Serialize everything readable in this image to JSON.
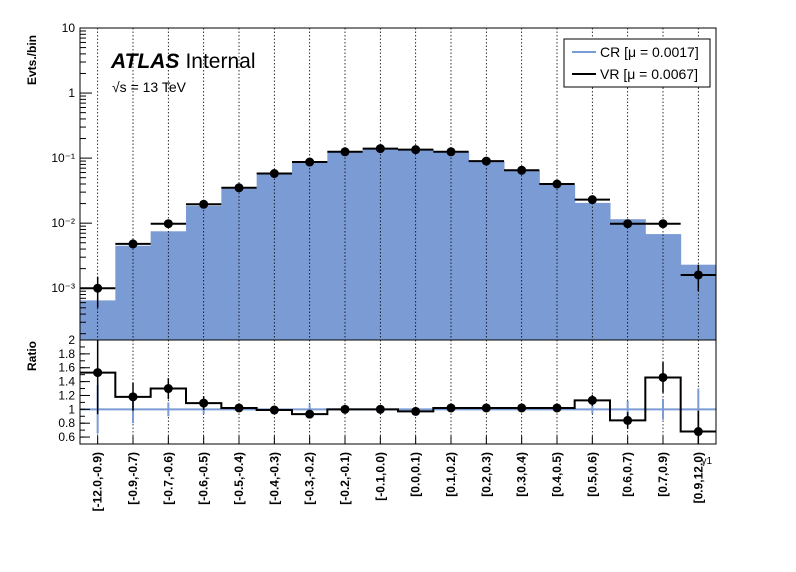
{
  "chart_data": {
    "type": "bar",
    "categories": [
      "[-12.0,-0.9)",
      "[-0.9,-0.7)",
      "[-0.7,-0.6)",
      "[-0.6,-0.5)",
      "[-0.5,-0.4)",
      "[-0.4,-0.3)",
      "[-0.3,-0.2)",
      "[-0.2,-0.1)",
      "[-0.1,0.0)",
      "[0.0,0.1)",
      "[0.1,0.2)",
      "[0.2,0.3)",
      "[0.3,0.4)",
      "[0.4,0.5)",
      "[0.5,0.6)",
      "[0.6,0.7)",
      "[0.7,0.9)",
      "[0.9,12.0)"
    ],
    "xlabel": "γ1",
    "ylabel": "Evts./bin",
    "ratio_ylabel": "Ratio",
    "yscale": "log",
    "ylim": [
      0.00016,
      10
    ],
    "ytick_labels": [
      "10⁻³",
      "10⁻²",
      "10⁻¹",
      "1",
      "10"
    ],
    "ytick_values": [
      0.001,
      0.01,
      0.1,
      1,
      10
    ],
    "ratio_ylim": [
      0.5,
      2.0
    ],
    "ratio_ytick_labels": [
      "0.6",
      "0.8",
      "1",
      "1.2",
      "1.4",
      "1.6",
      "1.8",
      "2"
    ],
    "ratio_ytick_values": [
      0.6,
      0.8,
      1.0,
      1.2,
      1.4,
      1.6,
      1.8,
      2.0
    ],
    "series": [
      {
        "name": "CR [μ = 0.0017]",
        "style": "filled histogram",
        "values": [
          0.00065,
          0.0045,
          0.0075,
          0.0185,
          0.034,
          0.058,
          0.09,
          0.125,
          0.14,
          0.137,
          0.122,
          0.091,
          0.065,
          0.039,
          0.0205,
          0.0115,
          0.0068,
          0.0023
        ]
      },
      {
        "name": "VR [μ = 0.0067]",
        "style": "points with errors",
        "values": [
          0.001,
          0.0048,
          0.0098,
          0.0195,
          0.035,
          0.058,
          0.087,
          0.125,
          0.14,
          0.135,
          0.125,
          0.09,
          0.065,
          0.04,
          0.023,
          0.0098,
          0.0098,
          0.0016
        ],
        "errors_low": [
          0.0005,
          0.0006,
          0.0011,
          0.0015,
          0.002,
          0.003,
          0.004,
          0.005,
          0.005,
          0.005,
          0.005,
          0.004,
          0.003,
          0.0025,
          0.002,
          0.0012,
          0.0012,
          0.0007
        ],
        "errors_high": [
          0.0005,
          0.0006,
          0.0011,
          0.0015,
          0.002,
          0.003,
          0.004,
          0.005,
          0.005,
          0.005,
          0.005,
          0.004,
          0.003,
          0.0025,
          0.002,
          0.0012,
          0.0012,
          0.0007
        ]
      }
    ],
    "ratio": {
      "values": [
        1.53,
        1.18,
        1.3,
        1.09,
        1.02,
        0.99,
        0.93,
        1.0,
        1.0,
        0.97,
        1.02,
        1.02,
        1.02,
        1.02,
        1.13,
        0.84,
        1.46,
        0.68
      ],
      "errors": [
        0.6,
        0.2,
        0.15,
        0.1,
        0.05,
        0.04,
        0.04,
        0.03,
        0.03,
        0.03,
        0.03,
        0.04,
        0.04,
        0.05,
        0.08,
        0.12,
        0.22,
        0.3
      ],
      "cr_errors": [
        0.35,
        0.2,
        0.1,
        0.07,
        0.04,
        0.03,
        0.08,
        0.03,
        0.02,
        0.02,
        0.02,
        0.02,
        0.02,
        0.03,
        0.06,
        0.12,
        0.15,
        0.3
      ]
    },
    "colors": {
      "cr": "#7a9bd4",
      "vr": "#000000"
    },
    "legend_position": "top-right",
    "grid": "vertical dotted"
  },
  "labels": {
    "atlas": "ATLAS",
    "internal": "Internal",
    "sqrt_s": "√s = 13 TeV"
  }
}
